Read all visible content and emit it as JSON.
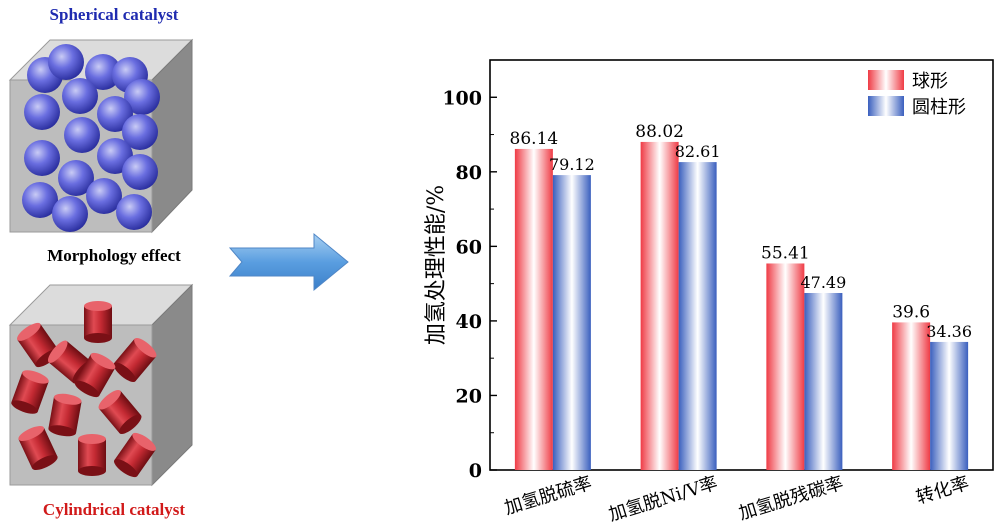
{
  "illustration": {
    "top_label": "Spherical catalyst",
    "middle_label": "Morphology effect",
    "bottom_label": "Cylindrical catalyst"
  },
  "colors": {
    "spherical": "#ef3b45",
    "cylindrical": "#3a5fbe",
    "sphere_fill": "#4a4fd0",
    "cylinder_fill": "#c8303a"
  },
  "chart_data": {
    "type": "bar",
    "categories": [
      "加氢脱硫率",
      "加氢脱Ni/V率",
      "加氢脱残碳率",
      "转化率"
    ],
    "series": [
      {
        "name": "球形",
        "values": [
          86.14,
          88.02,
          55.41,
          39.6
        ],
        "labels": [
          "86.14",
          "88.02",
          "55.41",
          "39.6"
        ]
      },
      {
        "name": "圆柱形",
        "values": [
          79.12,
          82.61,
          47.49,
          34.36
        ],
        "labels": [
          "79.12",
          "82.61",
          "47.49",
          "34.36"
        ]
      }
    ],
    "title": "",
    "xlabel": "",
    "ylabel": "加氢处理性能/%",
    "ylim": [
      0,
      110
    ],
    "yticks": [
      0,
      20,
      40,
      60,
      80,
      100
    ],
    "legend_position": "top-right",
    "grid": false
  }
}
